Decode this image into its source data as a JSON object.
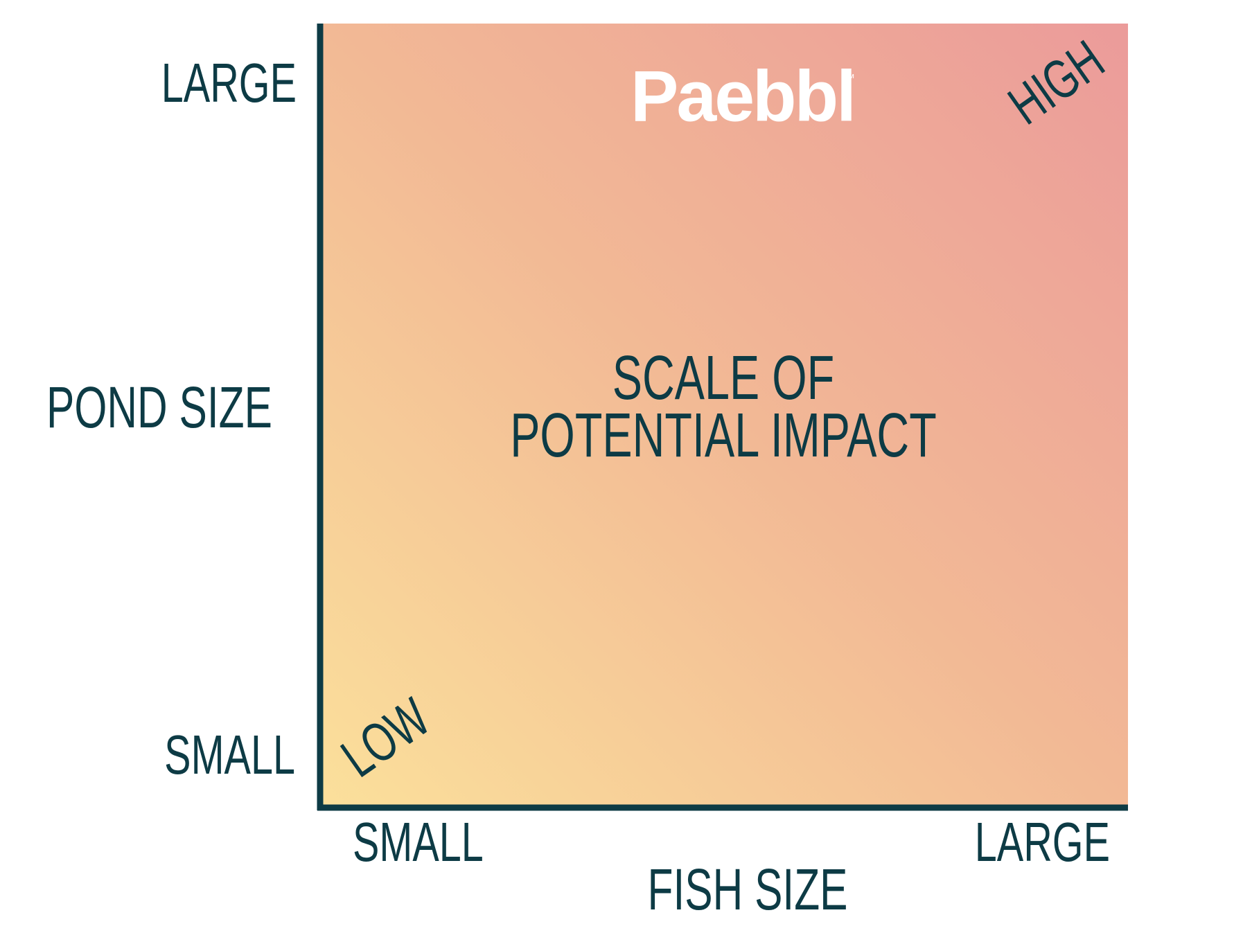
{
  "logo": {
    "name": "Paebbl",
    "mark": "™"
  },
  "y_axis": {
    "title": "POND SIZE",
    "low": "SMALL",
    "high": "LARGE"
  },
  "x_axis": {
    "title": "FISH SIZE",
    "low": "SMALL",
    "high": "LARGE"
  },
  "center_text": [
    "SCALE OF",
    "POTENTIAL IMPACT"
  ],
  "corners": {
    "low": "LOW",
    "high": "HIGH"
  }
}
